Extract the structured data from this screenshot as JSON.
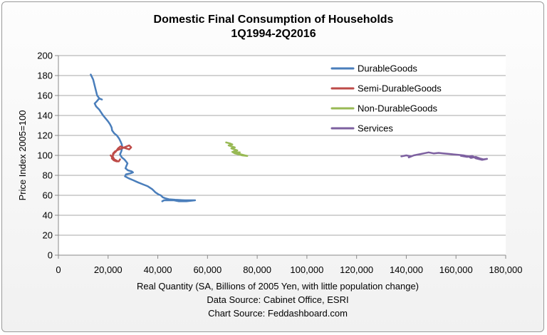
{
  "chart_data": {
    "type": "scatter",
    "title_line1": "Domestic Final Consumption of Households",
    "title_line2": "1Q1994-2Q2016",
    "xlabel": "Real Quantity (SA, Billions of 2005 Yen, with little population change)",
    "ylabel": "Price Index 2005=100",
    "source_line1": "Data Source: Cabinet Office, ESRI",
    "source_line2": "Chart Source: Feddashboard.com",
    "xlim": [
      0,
      180000
    ],
    "ylim": [
      0,
      200
    ],
    "grid": true,
    "legend_position": "top-right",
    "x_ticks": [
      {
        "value": 0,
        "label": "0"
      },
      {
        "value": 20000,
        "label": "20,000"
      },
      {
        "value": 40000,
        "label": "40,000"
      },
      {
        "value": 60000,
        "label": "60,000"
      },
      {
        "value": 80000,
        "label": "80,000"
      },
      {
        "value": 100000,
        "label": "100,000"
      },
      {
        "value": 120000,
        "label": "120,000"
      },
      {
        "value": 140000,
        "label": "140,000"
      },
      {
        "value": 160000,
        "label": "160,000"
      },
      {
        "value": 180000,
        "label": "180,000"
      }
    ],
    "y_ticks": [
      {
        "value": 0,
        "label": "0"
      },
      {
        "value": 20,
        "label": "20"
      },
      {
        "value": 40,
        "label": "40"
      },
      {
        "value": 60,
        "label": "60"
      },
      {
        "value": 80,
        "label": "80"
      },
      {
        "value": 100,
        "label": "100"
      },
      {
        "value": 120,
        "label": "120"
      },
      {
        "value": 140,
        "label": "140"
      },
      {
        "value": 160,
        "label": "160"
      },
      {
        "value": 180,
        "label": "180"
      },
      {
        "value": 200,
        "label": "200"
      }
    ],
    "series": [
      {
        "name": "DurableGoods",
        "color": "#4a7ebb",
        "points": [
          [
            13000,
            181
          ],
          [
            14000,
            176
          ],
          [
            14800,
            168
          ],
          [
            15600,
            160
          ],
          [
            16500,
            157
          ],
          [
            17500,
            156
          ],
          [
            16400,
            157
          ],
          [
            15400,
            154
          ],
          [
            14600,
            152
          ],
          [
            15200,
            149
          ],
          [
            16400,
            146
          ],
          [
            17200,
            143
          ],
          [
            18000,
            140
          ],
          [
            19000,
            137
          ],
          [
            20000,
            134
          ],
          [
            20800,
            131
          ],
          [
            21400,
            128
          ],
          [
            21600,
            125
          ],
          [
            22500,
            122
          ],
          [
            23500,
            120
          ],
          [
            24400,
            117
          ],
          [
            25000,
            114
          ],
          [
            25500,
            111
          ],
          [
            25700,
            108
          ],
          [
            25300,
            104
          ],
          [
            24800,
            101
          ],
          [
            25500,
            98
          ],
          [
            26500,
            96
          ],
          [
            27200,
            94
          ],
          [
            27800,
            92
          ],
          [
            27300,
            89
          ],
          [
            27000,
            87
          ],
          [
            28000,
            85
          ],
          [
            29500,
            84
          ],
          [
            30000,
            83
          ],
          [
            29000,
            82
          ],
          [
            27200,
            81
          ],
          [
            26800,
            79
          ],
          [
            28300,
            77
          ],
          [
            30200,
            75
          ],
          [
            32000,
            73
          ],
          [
            34000,
            71
          ],
          [
            36000,
            69
          ],
          [
            37800,
            66
          ],
          [
            39000,
            63
          ],
          [
            40200,
            61
          ],
          [
            41200,
            60
          ],
          [
            42000,
            58
          ],
          [
            43000,
            57
          ],
          [
            44500,
            56
          ],
          [
            47000,
            55.5
          ],
          [
            51000,
            55
          ],
          [
            55000,
            55
          ],
          [
            51500,
            54
          ],
          [
            48500,
            54
          ],
          [
            46500,
            55
          ],
          [
            44000,
            55
          ],
          [
            42500,
            55
          ],
          [
            41800,
            54
          ]
        ]
      },
      {
        "name": "Semi-DurableGoods",
        "color": "#be4b48",
        "points": [
          [
            21000,
            100
          ],
          [
            22000,
            97
          ],
          [
            23000,
            95
          ],
          [
            24000,
            94
          ],
          [
            22500,
            96
          ],
          [
            21800,
            99
          ],
          [
            22000,
            102
          ],
          [
            22800,
            104
          ],
          [
            23500,
            105
          ],
          [
            24500,
            106
          ],
          [
            25500,
            107
          ],
          [
            26500,
            108
          ],
          [
            27500,
            109
          ],
          [
            28500,
            110
          ],
          [
            29300,
            108
          ],
          [
            28500,
            106
          ],
          [
            27200,
            107
          ],
          [
            26000,
            108
          ],
          [
            25000,
            109
          ],
          [
            24000,
            107
          ],
          [
            23200,
            104
          ],
          [
            22300,
            102
          ],
          [
            21800,
            99
          ],
          [
            21500,
            97
          ],
          [
            22300,
            95
          ],
          [
            23300,
            94
          ],
          [
            24300,
            94
          ],
          [
            24800,
            96
          ]
        ]
      },
      {
        "name": "Non-DurableGoods",
        "color": "#98b954",
        "points": [
          [
            67500,
            113
          ],
          [
            69000,
            112
          ],
          [
            70000,
            111
          ],
          [
            68500,
            110
          ],
          [
            69800,
            109
          ],
          [
            71000,
            108
          ],
          [
            69600,
            107
          ],
          [
            70800,
            106
          ],
          [
            72000,
            105
          ],
          [
            70500,
            104
          ],
          [
            71500,
            103
          ],
          [
            73000,
            103
          ],
          [
            72000,
            102
          ],
          [
            73500,
            101
          ],
          [
            75000,
            100
          ],
          [
            76000,
            99.5
          ],
          [
            74000,
            100
          ],
          [
            72500,
            101
          ],
          [
            71000,
            102
          ],
          [
            70000,
            103.5
          ]
        ]
      },
      {
        "name": "Services",
        "color": "#7d60a0",
        "points": [
          [
            138000,
            99
          ],
          [
            140000,
            100
          ],
          [
            142000,
            99
          ],
          [
            141000,
            98
          ],
          [
            143000,
            100
          ],
          [
            145000,
            101
          ],
          [
            147000,
            102
          ],
          [
            149000,
            103
          ],
          [
            151000,
            102
          ],
          [
            153000,
            102.5
          ],
          [
            155000,
            102
          ],
          [
            157000,
            101.5
          ],
          [
            159000,
            101
          ],
          [
            161000,
            100.5
          ],
          [
            163000,
            100
          ],
          [
            165000,
            99
          ],
          [
            166000,
            97.5
          ],
          [
            168000,
            98.5
          ],
          [
            169500,
            97
          ],
          [
            171000,
            96
          ],
          [
            172500,
            96.5
          ],
          [
            170500,
            95.5
          ],
          [
            168000,
            97
          ],
          [
            166500,
            99.5
          ],
          [
            164500,
            98.5
          ],
          [
            162000,
            99.5
          ]
        ]
      }
    ]
  }
}
